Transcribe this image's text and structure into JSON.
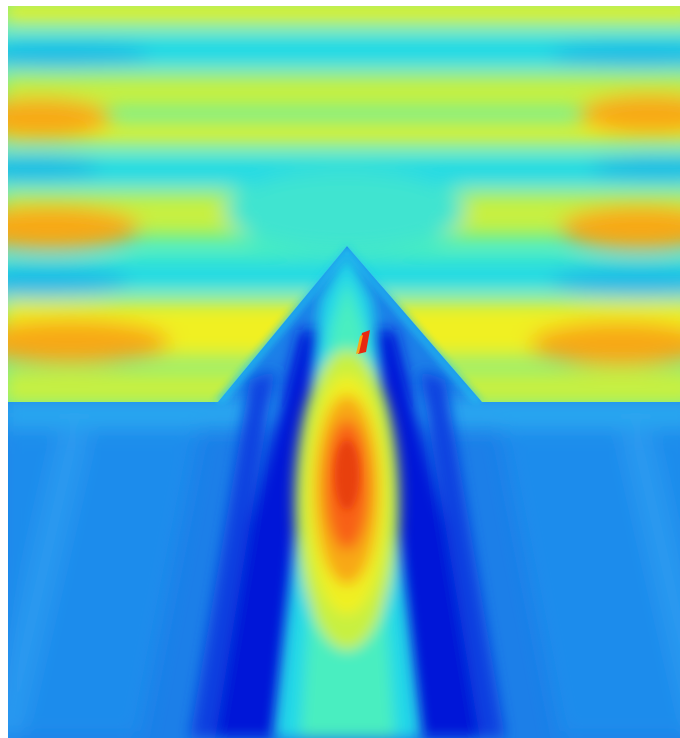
{
  "figure": {
    "kind": "heatmap-field-image",
    "colormap": "jet",
    "colors": {
      "background": "#ffffff",
      "deep_blue": "#0018d8",
      "blue": "#1c7fe8",
      "light_blue": "#2aa8f0",
      "cyan": "#20d8e8",
      "cyan_green": "#48eec0",
      "yellow_green": "#c8f040",
      "yellow": "#f0f020",
      "orange": "#f8a818",
      "orange_red": "#f86018",
      "red": "#e82810"
    }
  }
}
